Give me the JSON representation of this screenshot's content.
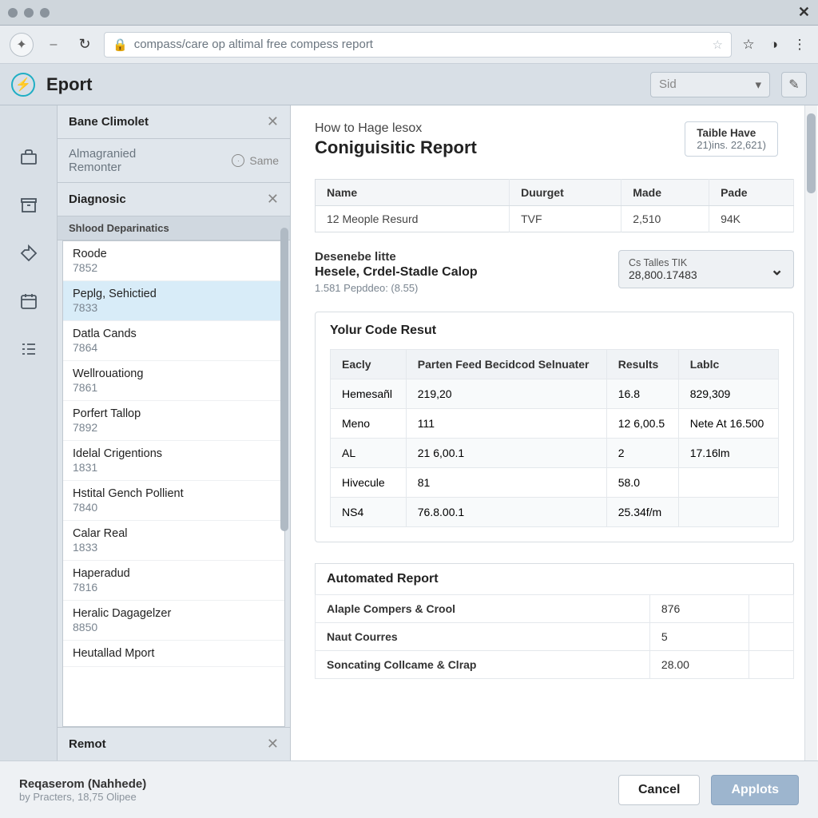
{
  "browser": {
    "url": "compass/care op altimal free compess report"
  },
  "app": {
    "title": "Eport",
    "select_placeholder": "Sid"
  },
  "sidebar": {
    "section1": {
      "title": "Bane Climolet"
    },
    "section2": {
      "title": "Almagranied",
      "sub": "Remonter",
      "meta": "Same"
    },
    "section3": {
      "title": "Diagnosic"
    },
    "list_header": "Shlood Deparinatics",
    "items": [
      {
        "name": "Roode",
        "code": "7852"
      },
      {
        "name": "Peplg, Sehictied",
        "code": "7833"
      },
      {
        "name": "Datla Cands",
        "code": "7864"
      },
      {
        "name": "Wellrouationg",
        "code": "7861"
      },
      {
        "name": "Porfert Tallop",
        "code": "7892"
      },
      {
        "name": "Idelal Crigentions",
        "code": "1831"
      },
      {
        "name": "Hstital Gench Pollient",
        "code": "7840"
      },
      {
        "name": "Calar Real",
        "code": "1833"
      },
      {
        "name": "Haperadud",
        "code": "7816"
      },
      {
        "name": "Heralic Dagagelzer",
        "code": "8850"
      },
      {
        "name": "Heutallad Mport",
        "code": ""
      }
    ],
    "remot": "Remot"
  },
  "main": {
    "pretitle": "How to Hage lesox",
    "title": "Coniguisitic Report",
    "badge": {
      "t": "Taible Have",
      "s": "21)ins. 22,621)"
    },
    "table1": {
      "columns": [
        "Name",
        "Duurget",
        "Made",
        "Pade"
      ],
      "row": [
        "12 Meople Resurd",
        "TVF",
        "2,510",
        "94K"
      ]
    },
    "desc": {
      "t1": "Desenebe litte",
      "t2": "Hesele, Crdel-Stadle Calop",
      "t3": "1.581 Pepddeo: (8.55)"
    },
    "dropdown": {
      "l1": "Cs Talles TIK",
      "l2": "28,800.17483"
    },
    "panel_title": "Yolur Code Resut",
    "table2": {
      "columns": [
        "Eacly",
        "Parten Feed Becidcod Selnuater",
        "Results",
        "Lablc"
      ],
      "rows": [
        [
          "Hemesañl",
          "219,20",
          "16.8",
          "829,309"
        ],
        [
          "Meno",
          "111",
          "12 6,00.5",
          "Nete At 16.500"
        ],
        [
          "AL",
          "21 6,00.1",
          "2",
          "17.16lm"
        ],
        [
          "Hivecule",
          "81",
          "58.0",
          ""
        ],
        [
          "NS4",
          "76.8.00.1",
          "25.34f/m",
          ""
        ]
      ]
    },
    "auto_title": "Automated Report",
    "table3": {
      "rows": [
        [
          "Alaple Compers & Crool",
          "876",
          ""
        ],
        [
          "Naut Courres",
          "5",
          ""
        ],
        [
          "Soncating Collcame & Clrap",
          "28.00",
          ""
        ]
      ]
    }
  },
  "footer": {
    "t1": "Reqaserom (Nahhede)",
    "t2": "by Practers, 18,75 Olipee",
    "cancel": "Cancel",
    "apply": "Applots"
  }
}
